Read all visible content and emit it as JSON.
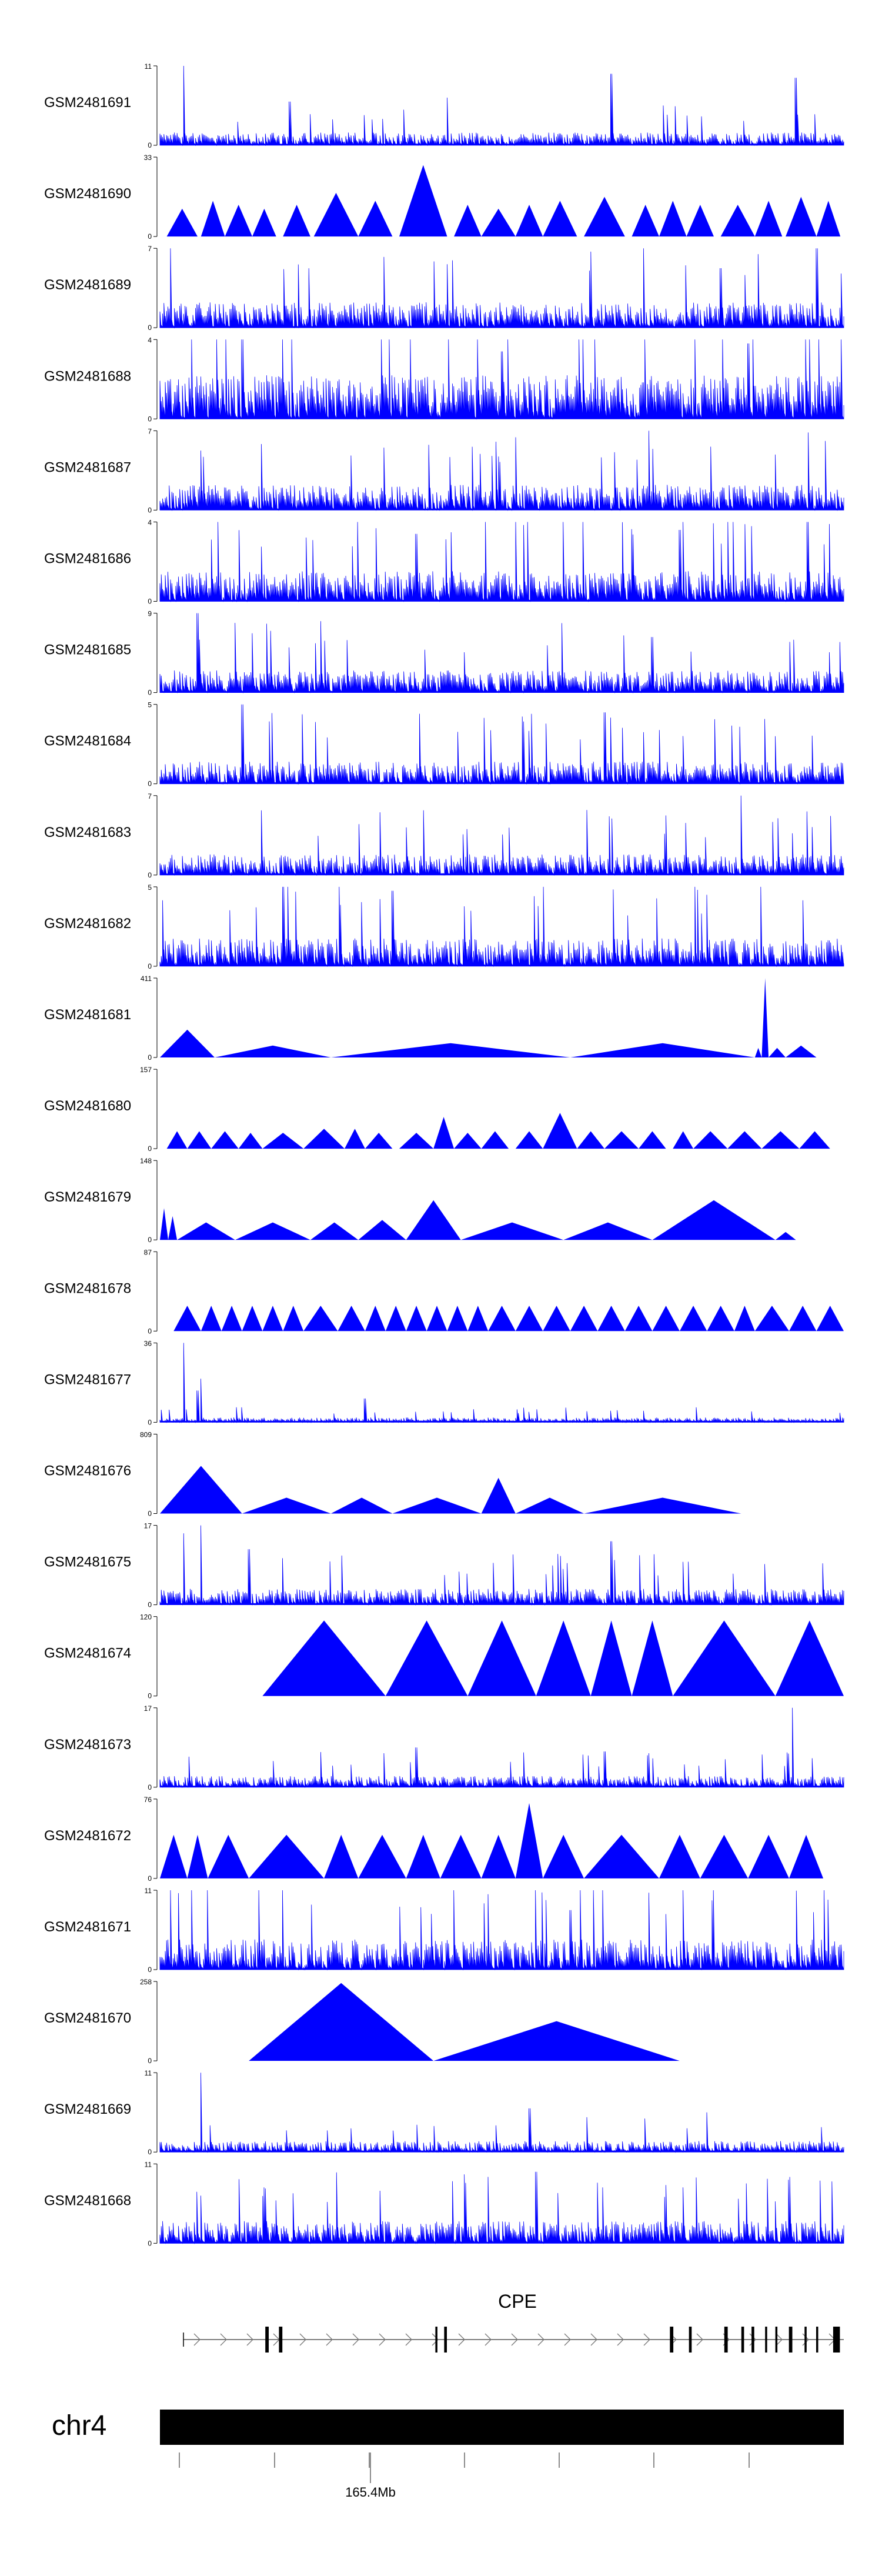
{
  "chart_data": {
    "type": "area",
    "title": "",
    "xlabel": "",
    "ylabel": "",
    "signal_color": "#0000FF",
    "chromosome": "chr4",
    "gene": "CPE",
    "axis_labels": [
      {
        "text": "165.4Mb",
        "tick": 3
      }
    ],
    "xlim": [
      0,
      1000
    ],
    "tracks": [
      {
        "name": "GSM2481691",
        "ymax": "11",
        "ymax_value": 11,
        "ymin": "0",
        "style": "dense",
        "seed": 11,
        "level": 0.16,
        "peaks": [
          [
            35,
            1.0
          ],
          [
            660,
            0.9
          ],
          [
            930,
            0.85
          ],
          [
            190,
            0.55
          ],
          [
            420,
            0.6
          ]
        ]
      },
      {
        "name": "GSM2481690",
        "ymax": "33",
        "ymax_value": 33,
        "ymin": "0",
        "style": "triangles",
        "seed": 12,
        "tris": [
          [
            10,
            55,
            0.35
          ],
          [
            60,
            95,
            0.45
          ],
          [
            95,
            135,
            0.4
          ],
          [
            135,
            170,
            0.35
          ],
          [
            180,
            220,
            0.4
          ],
          [
            225,
            290,
            0.55
          ],
          [
            290,
            340,
            0.45
          ],
          [
            350,
            420,
            0.9
          ],
          [
            430,
            470,
            0.4
          ],
          [
            470,
            520,
            0.35
          ],
          [
            520,
            560,
            0.4
          ],
          [
            560,
            610,
            0.45
          ],
          [
            620,
            680,
            0.5
          ],
          [
            690,
            730,
            0.4
          ],
          [
            730,
            770,
            0.45
          ],
          [
            770,
            810,
            0.4
          ],
          [
            820,
            870,
            0.4
          ],
          [
            870,
            910,
            0.45
          ],
          [
            915,
            960,
            0.5
          ],
          [
            960,
            995,
            0.45
          ]
        ]
      },
      {
        "name": "GSM2481689",
        "ymax": "7",
        "ymax_value": 7,
        "ymin": "0",
        "style": "dense",
        "seed": 13,
        "level": 0.32,
        "peaks": [
          [
            960,
            1.0
          ],
          [
            420,
            0.8
          ],
          [
            820,
            0.75
          ]
        ]
      },
      {
        "name": "GSM2481688",
        "ymax": "4",
        "ymax_value": 4,
        "ymin": "0",
        "style": "dense",
        "seed": 14,
        "level": 0.55,
        "peaks": [
          [
            120,
            1.0
          ],
          [
            860,
            0.95
          ],
          [
            500,
            0.85
          ]
        ]
      },
      {
        "name": "GSM2481687",
        "ymax": "7",
        "ymax_value": 7,
        "ymin": "0",
        "style": "dense",
        "seed": 15,
        "level": 0.32,
        "peaks": [
          [
            715,
            1.0
          ],
          [
            60,
            0.75
          ],
          [
            900,
            0.7
          ]
        ]
      },
      {
        "name": "GSM2481686",
        "ymax": "4",
        "ymax_value": 4,
        "ymin": "0",
        "style": "dense",
        "seed": 16,
        "level": 0.38,
        "peaks": [
          [
            520,
            1.0
          ],
          [
            760,
            0.9
          ],
          [
            375,
            0.85
          ]
        ]
      },
      {
        "name": "GSM2481685",
        "ymax": "9",
        "ymax_value": 9,
        "ymin": "0",
        "style": "dense",
        "seed": 17,
        "level": 0.28,
        "peaks": [
          [
            55,
            1.0
          ],
          [
            235,
            0.9
          ],
          [
            720,
            0.7
          ]
        ]
      },
      {
        "name": "GSM2481684",
        "ymax": "5",
        "ymax_value": 5,
        "ymin": "0",
        "style": "dense",
        "seed": 18,
        "level": 0.28,
        "peaks": [
          [
            120,
            1.0
          ],
          [
            650,
            0.9
          ],
          [
            900,
            0.6
          ]
        ]
      },
      {
        "name": "GSM2481683",
        "ymax": "7",
        "ymax_value": 7,
        "ymin": "0",
        "style": "dense",
        "seed": 19,
        "level": 0.26,
        "peaks": [
          [
            850,
            1.0
          ],
          [
            740,
            0.75
          ],
          [
            360,
            0.6
          ]
        ]
      },
      {
        "name": "GSM2481682",
        "ymax": "5",
        "ymax_value": 5,
        "ymin": "0",
        "style": "dense",
        "seed": 20,
        "level": 0.35,
        "peaks": [
          [
            180,
            1.0
          ],
          [
            340,
            0.95
          ],
          [
            800,
            0.9
          ]
        ]
      },
      {
        "name": "GSM2481681",
        "ymax": "411",
        "ymax_value": 411,
        "ymin": "0",
        "style": "triangles",
        "seed": 21,
        "tris": [
          [
            0,
            80,
            0.35
          ],
          [
            80,
            250,
            0.15
          ],
          [
            250,
            600,
            0.18
          ],
          [
            600,
            870,
            0.18
          ],
          [
            870,
            880,
            0.12
          ],
          [
            880,
            890,
            1.0
          ],
          [
            890,
            915,
            0.12
          ],
          [
            915,
            960,
            0.15
          ]
        ]
      },
      {
        "name": "GSM2481680",
        "ymax": "157",
        "ymax_value": 157,
        "ymin": "0",
        "style": "triangles",
        "seed": 22,
        "tris": [
          [
            10,
            40,
            0.22
          ],
          [
            40,
            75,
            0.22
          ],
          [
            75,
            115,
            0.22
          ],
          [
            115,
            150,
            0.2
          ],
          [
            150,
            210,
            0.2
          ],
          [
            210,
            270,
            0.25
          ],
          [
            270,
            300,
            0.25
          ],
          [
            300,
            340,
            0.2
          ],
          [
            350,
            400,
            0.2
          ],
          [
            400,
            430,
            0.4
          ],
          [
            430,
            470,
            0.2
          ],
          [
            470,
            510,
            0.22
          ],
          [
            520,
            560,
            0.22
          ],
          [
            560,
            610,
            0.45
          ],
          [
            610,
            650,
            0.22
          ],
          [
            650,
            700,
            0.22
          ],
          [
            700,
            740,
            0.22
          ],
          [
            750,
            780,
            0.22
          ],
          [
            780,
            830,
            0.22
          ],
          [
            830,
            880,
            0.22
          ],
          [
            880,
            935,
            0.22
          ],
          [
            935,
            980,
            0.22
          ]
        ]
      },
      {
        "name": "GSM2481679",
        "ymax": "148",
        "ymax_value": 148,
        "ymin": "0",
        "style": "triangles",
        "seed": 23,
        "tris": [
          [
            0,
            12,
            0.4
          ],
          [
            12,
            25,
            0.3
          ],
          [
            25,
            110,
            0.22
          ],
          [
            110,
            220,
            0.22
          ],
          [
            220,
            290,
            0.22
          ],
          [
            290,
            360,
            0.25
          ],
          [
            360,
            440,
            0.5
          ],
          [
            440,
            590,
            0.22
          ],
          [
            590,
            720,
            0.22
          ],
          [
            720,
            900,
            0.5
          ],
          [
            900,
            930,
            0.1
          ]
        ]
      },
      {
        "name": "GSM2481678",
        "ymax": "87",
        "ymax_value": 87,
        "ymin": "0",
        "style": "triangles",
        "seed": 24,
        "tris": [
          [
            20,
            60,
            0.32
          ],
          [
            60,
            90,
            0.32
          ],
          [
            90,
            120,
            0.32
          ],
          [
            120,
            150,
            0.32
          ],
          [
            150,
            180,
            0.32
          ],
          [
            180,
            210,
            0.32
          ],
          [
            210,
            260,
            0.32
          ],
          [
            260,
            300,
            0.32
          ],
          [
            300,
            330,
            0.32
          ],
          [
            330,
            360,
            0.32
          ],
          [
            360,
            390,
            0.32
          ],
          [
            390,
            420,
            0.32
          ],
          [
            420,
            450,
            0.32
          ],
          [
            450,
            480,
            0.32
          ],
          [
            480,
            520,
            0.32
          ],
          [
            520,
            560,
            0.32
          ],
          [
            560,
            600,
            0.32
          ],
          [
            600,
            640,
            0.32
          ],
          [
            640,
            680,
            0.32
          ],
          [
            680,
            720,
            0.32
          ],
          [
            720,
            760,
            0.32
          ],
          [
            760,
            800,
            0.32
          ],
          [
            800,
            840,
            0.32
          ],
          [
            840,
            870,
            0.32
          ],
          [
            870,
            920,
            0.32
          ],
          [
            920,
            960,
            0.32
          ],
          [
            960,
            1000,
            0.32
          ]
        ]
      },
      {
        "name": "GSM2481677",
        "ymax": "36",
        "ymax_value": 36,
        "ymin": "0",
        "style": "dense",
        "seed": 25,
        "level": 0.06,
        "peaks": [
          [
            35,
            1.0
          ],
          [
            60,
            0.55
          ],
          [
            300,
            0.3
          ],
          [
            55,
            0.4
          ]
        ]
      },
      {
        "name": "GSM2481676",
        "ymax": "809",
        "ymax_value": 809,
        "ymin": "0",
        "style": "triangles",
        "seed": 26,
        "tris": [
          [
            0,
            120,
            0.6
          ],
          [
            120,
            250,
            0.2
          ],
          [
            250,
            340,
            0.2
          ],
          [
            340,
            470,
            0.2
          ],
          [
            470,
            520,
            0.45
          ],
          [
            520,
            620,
            0.2
          ],
          [
            620,
            850,
            0.2
          ]
        ]
      },
      {
        "name": "GSM2481675",
        "ymax": "17",
        "ymax_value": 17,
        "ymin": "0",
        "style": "dense",
        "seed": 27,
        "level": 0.2,
        "peaks": [
          [
            60,
            1.0
          ],
          [
            35,
            0.9
          ],
          [
            660,
            0.8
          ],
          [
            130,
            0.7
          ]
        ]
      },
      {
        "name": "GSM2481674",
        "ymax": "120",
        "ymax_value": 120,
        "ymin": "0",
        "style": "triangles",
        "seed": 28,
        "tris": [
          [
            150,
            330,
            0.95
          ],
          [
            330,
            450,
            0.95
          ],
          [
            450,
            550,
            0.95
          ],
          [
            550,
            630,
            0.95
          ],
          [
            630,
            690,
            0.95
          ],
          [
            690,
            750,
            0.95
          ],
          [
            750,
            900,
            0.95
          ],
          [
            900,
            1000,
            0.95
          ]
        ]
      },
      {
        "name": "GSM2481673",
        "ymax": "17",
        "ymax_value": 17,
        "ymin": "0",
        "style": "dense",
        "seed": 29,
        "level": 0.14,
        "peaks": [
          [
            925,
            1.0
          ],
          [
            375,
            0.5
          ],
          [
            650,
            0.45
          ]
        ]
      },
      {
        "name": "GSM2481672",
        "ymax": "76",
        "ymax_value": 76,
        "ymin": "0",
        "style": "triangles",
        "seed": 30,
        "tris": [
          [
            0,
            40,
            0.55
          ],
          [
            40,
            70,
            0.55
          ],
          [
            70,
            130,
            0.55
          ],
          [
            130,
            240,
            0.55
          ],
          [
            240,
            290,
            0.55
          ],
          [
            290,
            360,
            0.55
          ],
          [
            360,
            410,
            0.55
          ],
          [
            410,
            470,
            0.55
          ],
          [
            470,
            520,
            0.55
          ],
          [
            520,
            560,
            0.95
          ],
          [
            560,
            620,
            0.55
          ],
          [
            620,
            730,
            0.55
          ],
          [
            730,
            790,
            0.55
          ],
          [
            790,
            860,
            0.55
          ],
          [
            860,
            920,
            0.55
          ],
          [
            920,
            970,
            0.55
          ]
        ]
      },
      {
        "name": "GSM2481671",
        "ymax": "11",
        "ymax_value": 11,
        "ymin": "0",
        "style": "dense",
        "seed": 31,
        "level": 0.38,
        "peaks": [
          [
            480,
            0.95
          ],
          [
            600,
            0.75
          ],
          [
            740,
            0.7
          ]
        ]
      },
      {
        "name": "GSM2481670",
        "ymax": "258",
        "ymax_value": 258,
        "ymin": "0",
        "style": "triangles",
        "seed": 32,
        "tris": [
          [
            130,
            400,
            0.98
          ],
          [
            400,
            760,
            0.5
          ]
        ]
      },
      {
        "name": "GSM2481669",
        "ymax": "11",
        "ymax_value": 11,
        "ymin": "0",
        "style": "dense",
        "seed": 33,
        "level": 0.14,
        "peaks": [
          [
            60,
            1.0
          ],
          [
            540,
            0.55
          ],
          [
            800,
            0.5
          ]
        ]
      },
      {
        "name": "GSM2481668",
        "ymax": "11",
        "ymax_value": 11,
        "ymin": "0",
        "style": "dense",
        "seed": 34,
        "level": 0.28,
        "peaks": [
          [
            550,
            0.9
          ],
          [
            920,
            0.8
          ],
          [
            60,
            0.6
          ]
        ]
      }
    ],
    "gene_model": {
      "strand": "+",
      "exons": [
        [
          165,
          170
        ],
        [
          185,
          190
        ],
        [
          415,
          418
        ],
        [
          428,
          432
        ],
        [
          760,
          765
        ],
        [
          788,
          792
        ],
        [
          840,
          845
        ],
        [
          865,
          869
        ],
        [
          880,
          884
        ],
        [
          900,
          903
        ],
        [
          915,
          918
        ],
        [
          935,
          940
        ],
        [
          958,
          961
        ],
        [
          975,
          978
        ],
        [
          1000,
          1010
        ]
      ]
    }
  }
}
